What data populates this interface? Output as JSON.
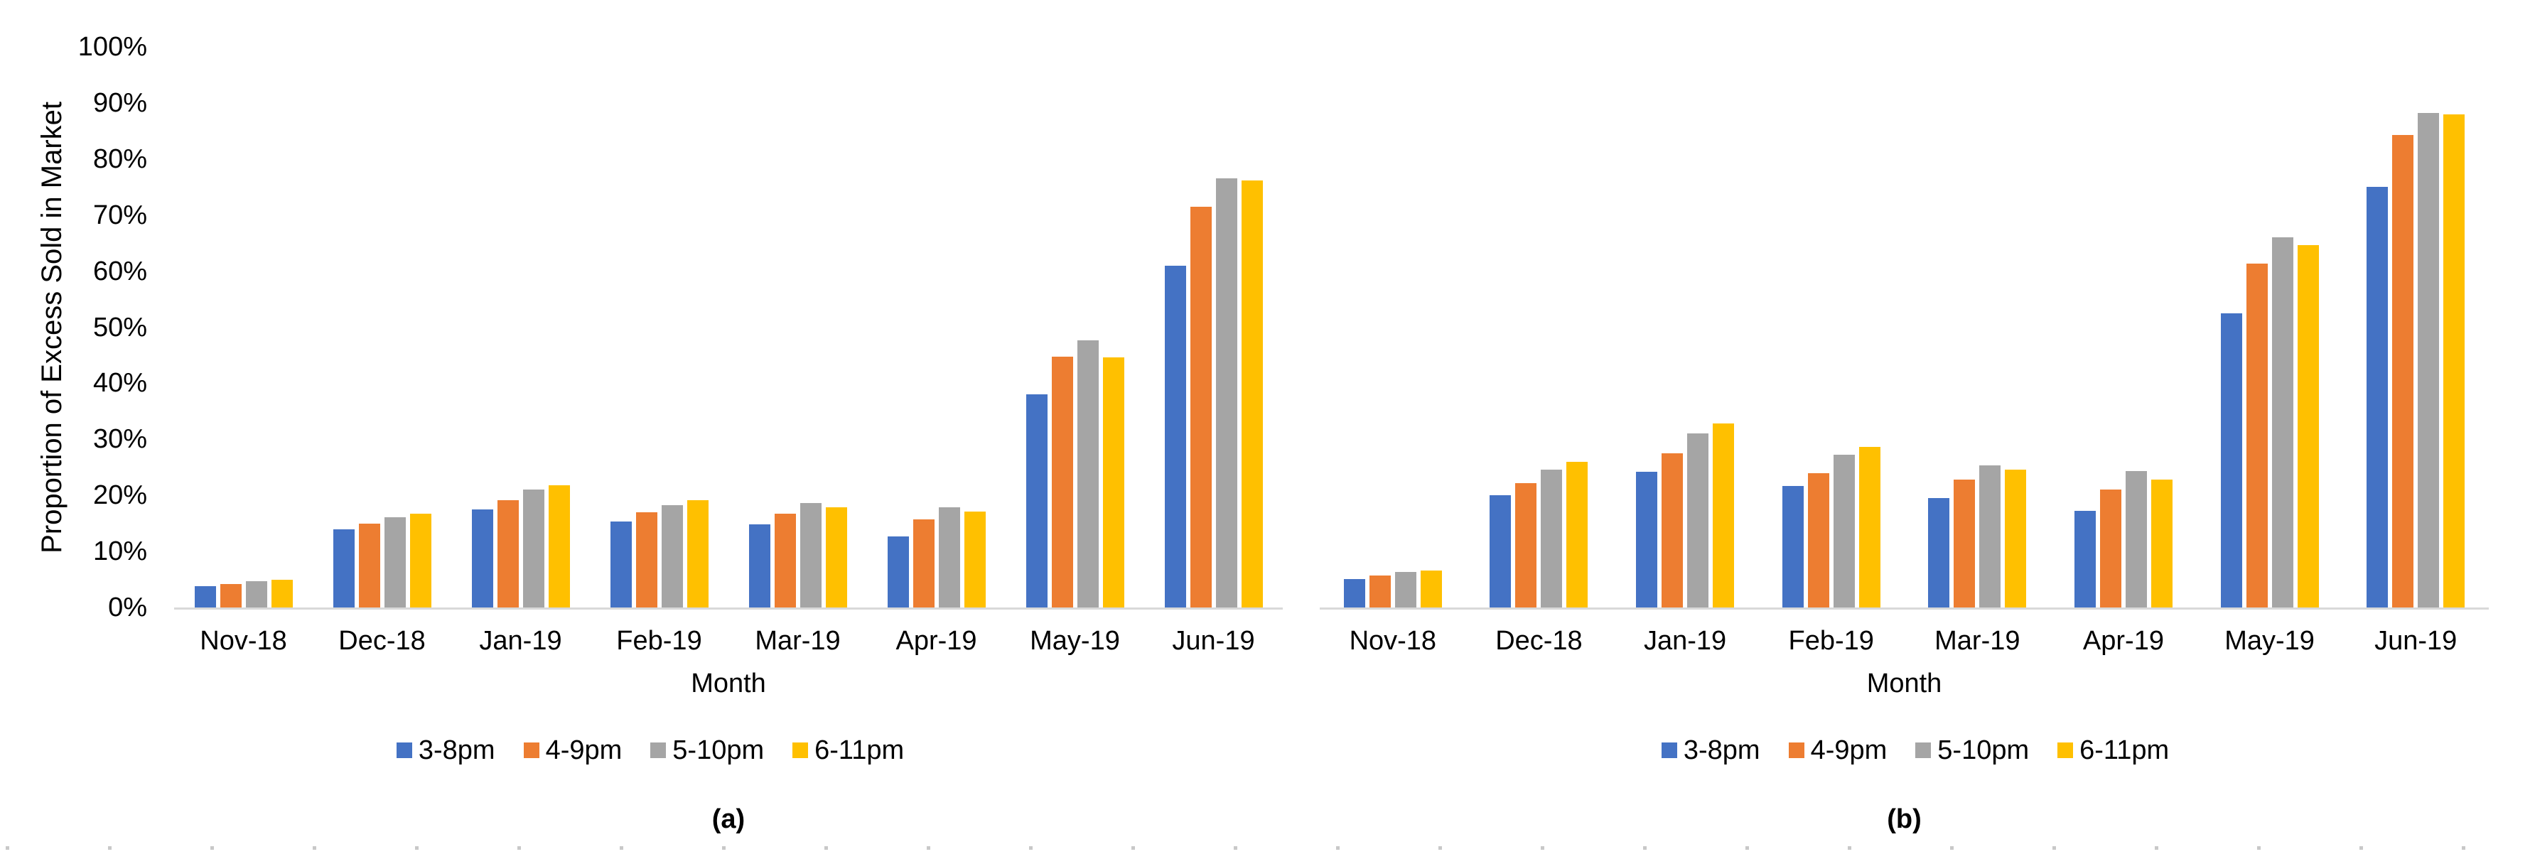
{
  "figure": {
    "background": "#FFFFFF",
    "axis_line_color": "#D9D9D9",
    "text_color": "#000000",
    "bottom_dots_color": "#C9C9C9",
    "y_tick_labels": [
      "0%",
      "10%",
      "20%",
      "30%",
      "40%",
      "50%",
      "60%",
      "70%",
      "80%",
      "90%",
      "100%"
    ]
  },
  "chart_data": [
    {
      "id": "a",
      "type": "bar",
      "caption": "(a)",
      "xlabel": "Month",
      "ylabel": "Proportion of Excess Sold in Market",
      "ylim": [
        0,
        100
      ],
      "grid": false,
      "y_axis_labels_visible": true,
      "legend_position": "bottom",
      "categories": [
        "Nov-18",
        "Dec-18",
        "Jan-19",
        "Feb-19",
        "Mar-19",
        "Apr-19",
        "May-19",
        "Jun-19"
      ],
      "series": [
        {
          "name": "3-8pm",
          "color": "#4472C4",
          "values": [
            3.8,
            13.9,
            17.5,
            15.3,
            14.8,
            12.7,
            38.0,
            61.0
          ]
        },
        {
          "name": "4-9pm",
          "color": "#ED7D31",
          "values": [
            4.2,
            15.0,
            19.2,
            17.0,
            16.7,
            15.7,
            44.8,
            71.5
          ]
        },
        {
          "name": "5-10pm",
          "color": "#A5A5A5",
          "values": [
            4.7,
            16.1,
            21.0,
            18.3,
            18.7,
            17.9,
            47.7,
            76.5
          ]
        },
        {
          "name": "6-11pm",
          "color": "#FFC000",
          "values": [
            5.0,
            16.7,
            21.8,
            19.2,
            17.9,
            17.1,
            44.6,
            76.2
          ]
        }
      ]
    },
    {
      "id": "b",
      "type": "bar",
      "caption": "(b)",
      "xlabel": "Month",
      "ylabel": "",
      "ylim": [
        0,
        100
      ],
      "grid": false,
      "y_axis_labels_visible": false,
      "legend_position": "bottom",
      "categories": [
        "Nov-18",
        "Dec-18",
        "Jan-19",
        "Feb-19",
        "Mar-19",
        "Apr-19",
        "May-19",
        "Jun-19"
      ],
      "series": [
        {
          "name": "3-8pm",
          "color": "#4472C4",
          "values": [
            5.1,
            20.0,
            24.2,
            21.7,
            19.5,
            17.2,
            52.5,
            75.0
          ]
        },
        {
          "name": "4-9pm",
          "color": "#ED7D31",
          "values": [
            5.7,
            22.2,
            27.5,
            24.0,
            22.8,
            21.1,
            61.4,
            84.3
          ]
        },
        {
          "name": "5-10pm",
          "color": "#A5A5A5",
          "values": [
            6.3,
            24.6,
            31.0,
            27.2,
            25.3,
            24.3,
            66.1,
            88.2
          ]
        },
        {
          "name": "6-11pm",
          "color": "#FFC000",
          "values": [
            6.6,
            26.0,
            32.8,
            28.6,
            24.6,
            22.8,
            64.7,
            88.0
          ]
        }
      ]
    }
  ]
}
